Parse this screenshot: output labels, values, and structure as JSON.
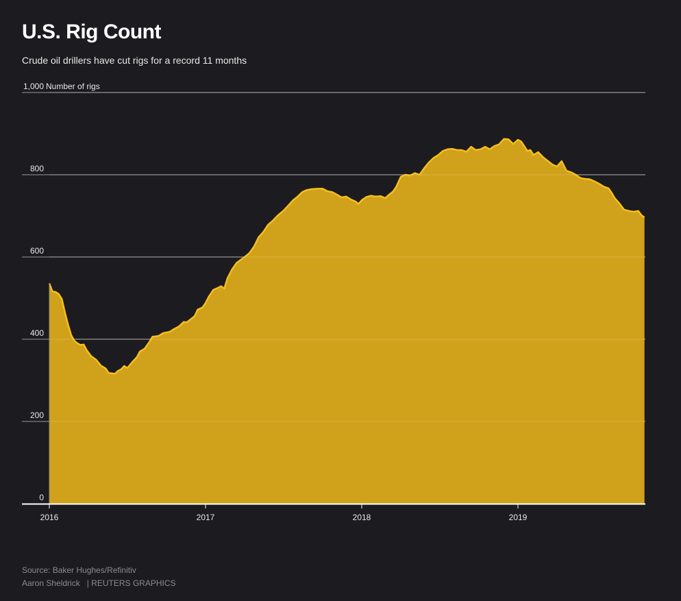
{
  "header": {
    "title": "U.S. Rig Count",
    "subtitle": "Crude oil drillers have cut rigs for a record 11 months"
  },
  "footer": {
    "source": "Source: Baker Hughes/Refinitiv",
    "author": "Aaron Sheldrick",
    "org": "| REUTERS GRAPHICS"
  },
  "colors": {
    "background": "#1c1b1f",
    "area_fill": "#d0a11a",
    "line": "#f5bf1f",
    "gridline": "#6f6f6f",
    "baseline": "#ffffff"
  },
  "chart_data": {
    "type": "area",
    "title": "U.S. Rig Count",
    "ylabel": "Number of rigs",
    "xlabel": "",
    "ylim": [
      0,
      1000
    ],
    "xlim": [
      2016.0,
      2019.81
    ],
    "yticks": [
      0,
      200,
      400,
      600,
      800,
      1000
    ],
    "ytick_labels": [
      "0",
      "200",
      "400",
      "600",
      "800",
      "1,000"
    ],
    "xticks": [
      2016,
      2017,
      2018,
      2019
    ],
    "xtick_labels": [
      "2016",
      "2017",
      "2018",
      "2019"
    ],
    "grid": true,
    "series": [
      {
        "name": "",
        "points": [
          [
            2016.0,
            536
          ],
          [
            2016.02,
            516
          ],
          [
            2016.04,
            515
          ],
          [
            2016.06,
            510
          ],
          [
            2016.08,
            498
          ],
          [
            2016.1,
            465
          ],
          [
            2016.12,
            435
          ],
          [
            2016.14,
            410
          ],
          [
            2016.16,
            396
          ],
          [
            2016.18,
            390
          ],
          [
            2016.2,
            386
          ],
          [
            2016.22,
            387
          ],
          [
            2016.24,
            373
          ],
          [
            2016.27,
            358
          ],
          [
            2016.3,
            350
          ],
          [
            2016.33,
            336
          ],
          [
            2016.36,
            329
          ],
          [
            2016.38,
            318
          ],
          [
            2016.4,
            317
          ],
          [
            2016.42,
            316
          ],
          [
            2016.44,
            323
          ],
          [
            2016.46,
            327
          ],
          [
            2016.48,
            335
          ],
          [
            2016.5,
            330
          ],
          [
            2016.53,
            344
          ],
          [
            2016.56,
            356
          ],
          [
            2016.58,
            370
          ],
          [
            2016.61,
            377
          ],
          [
            2016.64,
            393
          ],
          [
            2016.66,
            406
          ],
          [
            2016.7,
            408
          ],
          [
            2016.73,
            415
          ],
          [
            2016.77,
            418
          ],
          [
            2016.8,
            425
          ],
          [
            2016.83,
            431
          ],
          [
            2016.86,
            442
          ],
          [
            2016.88,
            441
          ],
          [
            2016.91,
            450
          ],
          [
            2016.93,
            456
          ],
          [
            2016.95,
            472
          ],
          [
            2016.98,
            477
          ],
          [
            2017.0,
            488
          ],
          [
            2017.02,
            503
          ],
          [
            2017.05,
            520
          ],
          [
            2017.08,
            525
          ],
          [
            2017.1,
            529
          ],
          [
            2017.12,
            523
          ],
          [
            2017.14,
            548
          ],
          [
            2017.17,
            570
          ],
          [
            2017.2,
            586
          ],
          [
            2017.24,
            597
          ],
          [
            2017.28,
            609
          ],
          [
            2017.31,
            625
          ],
          [
            2017.34,
            648
          ],
          [
            2017.37,
            661
          ],
          [
            2017.4,
            678
          ],
          [
            2017.43,
            688
          ],
          [
            2017.46,
            700
          ],
          [
            2017.5,
            713
          ],
          [
            2017.53,
            725
          ],
          [
            2017.56,
            738
          ],
          [
            2017.59,
            747
          ],
          [
            2017.62,
            758
          ],
          [
            2017.65,
            763
          ],
          [
            2017.68,
            765
          ],
          [
            2017.72,
            766
          ],
          [
            2017.75,
            766
          ],
          [
            2017.78,
            760
          ],
          [
            2017.81,
            758
          ],
          [
            2017.84,
            752
          ],
          [
            2017.87,
            745
          ],
          [
            2017.9,
            747
          ],
          [
            2017.93,
            740
          ],
          [
            2017.96,
            735
          ],
          [
            2017.98,
            729
          ],
          [
            2018.0,
            738
          ],
          [
            2018.03,
            746
          ],
          [
            2018.06,
            749
          ],
          [
            2018.09,
            747
          ],
          [
            2018.12,
            748
          ],
          [
            2018.15,
            743
          ],
          [
            2018.17,
            750
          ],
          [
            2018.2,
            759
          ],
          [
            2018.22,
            770
          ],
          [
            2018.25,
            795
          ],
          [
            2018.28,
            800
          ],
          [
            2018.31,
            798
          ],
          [
            2018.34,
            804
          ],
          [
            2018.37,
            800
          ],
          [
            2018.4,
            816
          ],
          [
            2018.43,
            830
          ],
          [
            2018.46,
            841
          ],
          [
            2018.49,
            848
          ],
          [
            2018.52,
            858
          ],
          [
            2018.55,
            862
          ],
          [
            2018.58,
            863
          ],
          [
            2018.61,
            860
          ],
          [
            2018.64,
            860
          ],
          [
            2018.67,
            856
          ],
          [
            2018.7,
            868
          ],
          [
            2018.73,
            860
          ],
          [
            2018.76,
            862
          ],
          [
            2018.79,
            868
          ],
          [
            2018.82,
            862
          ],
          [
            2018.85,
            870
          ],
          [
            2018.88,
            874
          ],
          [
            2018.91,
            887
          ],
          [
            2018.94,
            886
          ],
          [
            2018.97,
            875
          ],
          [
            2019.0,
            885
          ],
          [
            2019.02,
            881
          ],
          [
            2019.04,
            870
          ],
          [
            2019.06,
            858
          ],
          [
            2019.08,
            860
          ],
          [
            2019.1,
            848
          ],
          [
            2019.13,
            855
          ],
          [
            2019.16,
            843
          ],
          [
            2019.19,
            834
          ],
          [
            2019.22,
            825
          ],
          [
            2019.25,
            820
          ],
          [
            2019.28,
            833
          ],
          [
            2019.31,
            810
          ],
          [
            2019.34,
            806
          ],
          [
            2019.37,
            800
          ],
          [
            2019.4,
            792
          ],
          [
            2019.43,
            790
          ],
          [
            2019.46,
            789
          ],
          [
            2019.49,
            784
          ],
          [
            2019.52,
            778
          ],
          [
            2019.55,
            771
          ],
          [
            2019.58,
            767
          ],
          [
            2019.6,
            756
          ],
          [
            2019.62,
            743
          ],
          [
            2019.65,
            730
          ],
          [
            2019.68,
            715
          ],
          [
            2019.71,
            712
          ],
          [
            2019.74,
            710
          ],
          [
            2019.77,
            712
          ],
          [
            2019.79,
            702
          ],
          [
            2019.81,
            696
          ]
        ]
      }
    ]
  }
}
